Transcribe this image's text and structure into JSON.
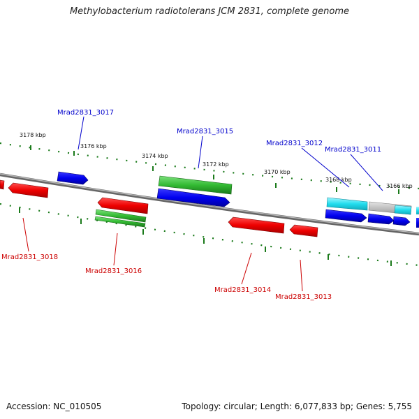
{
  "title": "Methylobacterium radiotolerans JCM 2831, complete genome",
  "footer": {
    "accession": "Accession: NC_010505",
    "topology": "Topology: circular; Length: 6,077,833 bp; Genes: 5,755"
  },
  "colors": {
    "forward_label": "#0000cc",
    "reverse_label": "#cc0000",
    "tick": "#1a7a1a",
    "backbone": "#808080"
  },
  "ticks": [
    {
      "label": "3178 kbp"
    },
    {
      "label": "3176 kbp"
    },
    {
      "label": "3174 kbp"
    },
    {
      "label": "3172 kbp"
    },
    {
      "label": "3170 kbp"
    },
    {
      "label": "3168 kbp"
    },
    {
      "label": "3166 kbp"
    }
  ],
  "gene_labels": [
    {
      "text": "Mrad2831_3017",
      "strand": "forward"
    },
    {
      "text": "Mrad2831_3015",
      "strand": "forward"
    },
    {
      "text": "Mrad2831_3012",
      "strand": "forward"
    },
    {
      "text": "Mrad2831_3011",
      "strand": "forward"
    },
    {
      "text": "Mrad2831_3018",
      "strand": "reverse"
    },
    {
      "text": "Mrad2831_3016",
      "strand": "reverse"
    },
    {
      "text": "Mrad2831_3014",
      "strand": "reverse"
    },
    {
      "text": "Mrad2831_3013",
      "strand": "reverse"
    }
  ]
}
